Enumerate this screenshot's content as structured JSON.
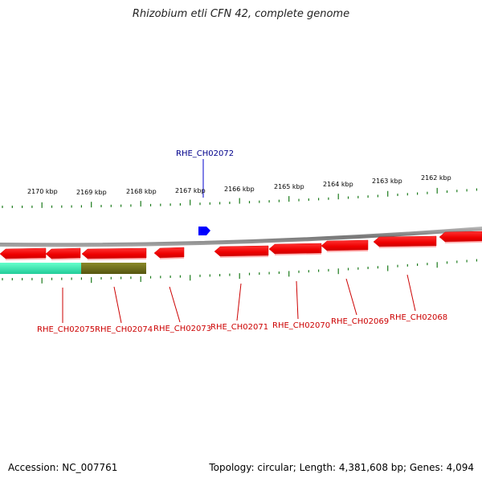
{
  "title": "Rhizobium etli CFN 42, complete genome",
  "footer": {
    "accession": "Accession: NC_007761",
    "summary": "Topology: circular; Length: 4,381,608 bp; Genes: 4,094"
  },
  "kbp_labels": [
    "2170 kbp",
    "2169 kbp",
    "2168 kbp",
    "2167 kbp",
    "2166 kbp",
    "2165 kbp",
    "2164 kbp",
    "2163 kbp",
    "2162 kbp"
  ],
  "genes_forward": [
    {
      "id": "RHE_CH02072",
      "label_color": "#00008b",
      "fill": "#0000ff"
    }
  ],
  "genes_reverse": [
    {
      "id": "RHE_CH02075"
    },
    {
      "id": "RHE_CH02074"
    },
    {
      "id": "RHE_CH02073"
    },
    {
      "id": "RHE_CH02071"
    },
    {
      "id": "RHE_CH02070"
    },
    {
      "id": "RHE_CH02069"
    },
    {
      "id": "RHE_CH02068"
    }
  ],
  "colors": {
    "reverse_gene": "#ff0000",
    "reverse_label": "#cc0000",
    "tick": "#1a7a1a",
    "backbone": "#888888",
    "feature_teal": "#33ddaa",
    "feature_olive": "#6b6b1a"
  }
}
